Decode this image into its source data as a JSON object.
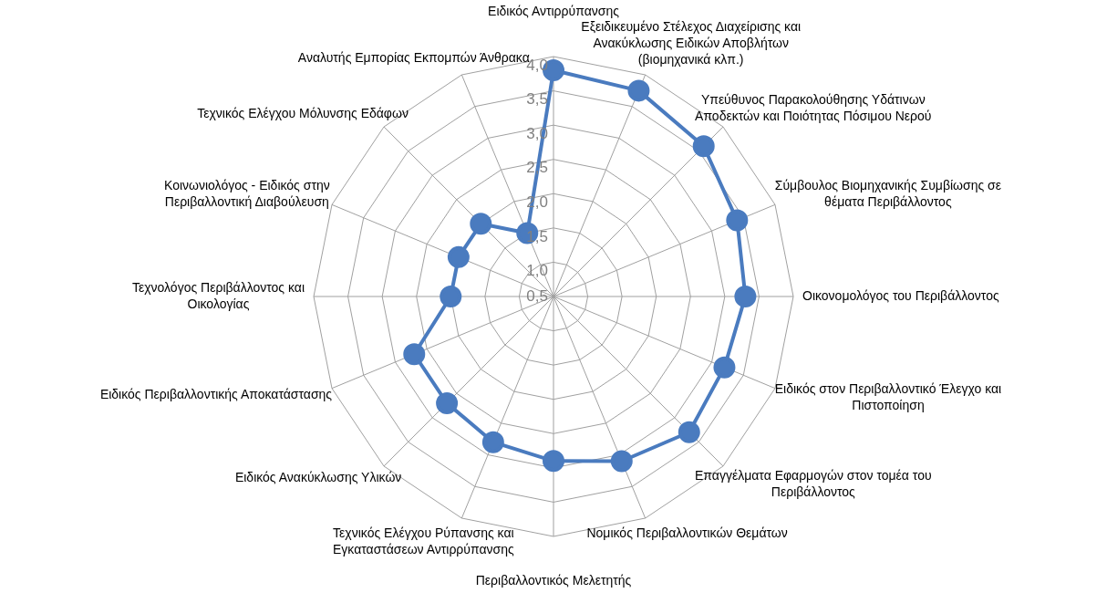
{
  "chart_data": {
    "type": "radar",
    "categories": [
      "Ειδικός Αντιρρύπανσης",
      "Εξειδικευμένο Στέλεχος Διαχείρισης και Ανακύκλωσης Ειδικών Αποβλήτων (βιομηχανικά κλπ.)",
      "Υπεύθυνος Παρακολούθησης Υδάτινων Αποδεκτών και Ποιότητας Πόσιμου Νερού",
      "Σύμβουλος Βιομηχανικής Συμβίωσης σε θέματα Περιβάλλοντος",
      "Οικονομολόγος του Περιβάλλοντος",
      "Ειδικός στον Περιβαλλοντικό Έλεγχο και Πιστοποίηση",
      "Επαγγέλματα Εφαρμογών στον τομέα του Περιβάλλοντος",
      "Νομικός Περιβαλλοντικών Θεμάτων",
      "Περιβαλλοντικός Μελετητής",
      "Τεχνικός Ελέγχου Ρύπανσης και Εγκαταστάσεων Αντιρρύπανσης",
      "Ειδικός Ανακύκλωσης Υλικών",
      "Ειδικός Περιβαλλοντικής Αποκατάστασης",
      "Τεχνολόγος Περιβάλλοντος και Οικολογίας",
      "Κοινωνιολόγος - Ειδικός στην Περιβαλλοντική Διαβούλευση",
      "Τεχνικός Ελέγχου Μόλυνσης Εδάφων",
      "Αναλυτής Εμπορίας Εκπομπών Άνθρακα"
    ],
    "series": [
      {
        "color": "#4a7bbf",
        "values": [
          3.8,
          3.75,
          3.6,
          3.4,
          3.3,
          3.2,
          3.3,
          3.1,
          2.9,
          2.8,
          2.7,
          2.7,
          2.0,
          2.0,
          2.0,
          1.5
        ]
      }
    ],
    "ylim": [
      0.5,
      4.0
    ],
    "yticks": [
      {
        "value": 0.5,
        "label": "0,5"
      },
      {
        "value": 1.0,
        "label": "1,0"
      },
      {
        "value": 1.5,
        "label": "1,5"
      },
      {
        "value": 2.0,
        "label": "2,0"
      },
      {
        "value": 2.5,
        "label": "2,5"
      },
      {
        "value": 3.0,
        "label": "3,0"
      },
      {
        "value": 3.5,
        "label": "3,5"
      },
      {
        "value": 4.0,
        "label": "4,0"
      }
    ],
    "grid": true,
    "legend": false,
    "marker": "circle",
    "line_style": "solid"
  }
}
